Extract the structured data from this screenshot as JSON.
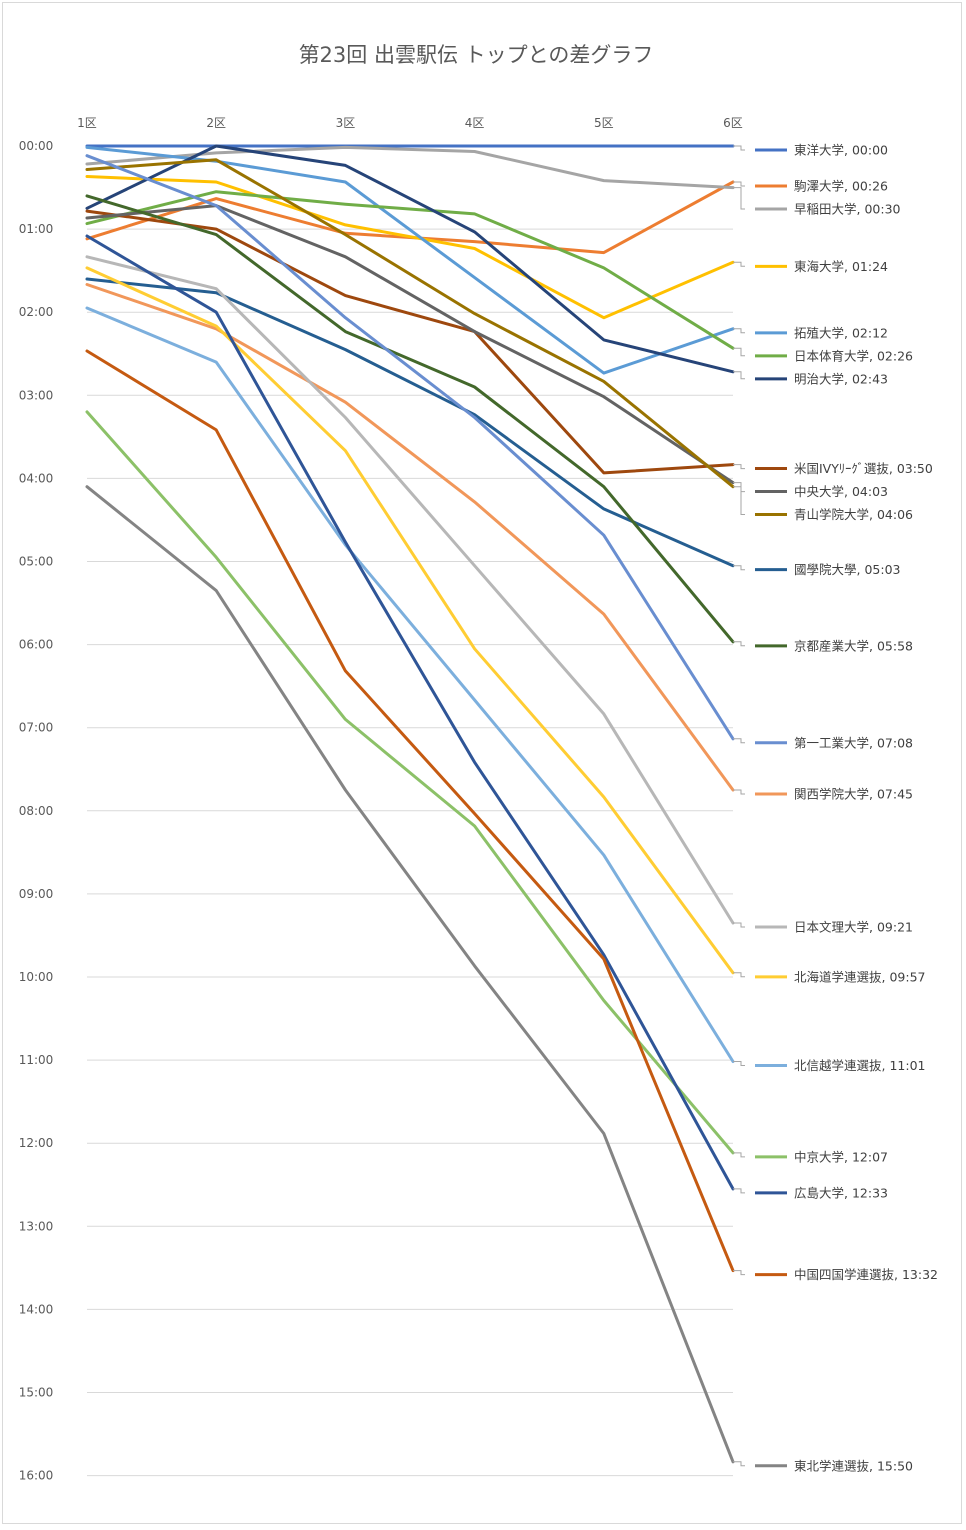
{
  "chart_data": {
    "type": "line",
    "title": "第23回 出雲駅伝 トップとの差グラフ",
    "categories": [
      "1区",
      "2区",
      "3区",
      "4区",
      "5区",
      "6区"
    ],
    "y_ticks": [
      "00:00",
      "01:00",
      "02:00",
      "03:00",
      "04:00",
      "05:00",
      "06:00",
      "07:00",
      "08:00",
      "09:00",
      "10:00",
      "11:00",
      "12:00",
      "13:00",
      "14:00",
      "15:00",
      "16:00"
    ],
    "ylim": [
      0,
      960
    ],
    "y_unit": "seconds behind leader (axis printed as mm:ss, inverted)",
    "grid": true,
    "legend": "right",
    "series": [
      {
        "name": "東洋大学",
        "label": "東洋大学, 00:00",
        "color": "#4472c4",
        "values": [
          0,
          0,
          0,
          0,
          0,
          0
        ]
      },
      {
        "name": "駒澤大学",
        "label": "駒澤大学, 00:26",
        "color": "#ed7d31",
        "values": [
          67,
          38,
          63,
          69,
          77,
          26
        ]
      },
      {
        "name": "早稲田大学",
        "label": "早稲田大学, 00:30",
        "color": "#a5a5a5",
        "values": [
          13,
          5,
          1,
          4,
          25,
          30
        ]
      },
      {
        "name": "東海大学",
        "label": "東海大学, 01:24",
        "color": "#ffc000",
        "values": [
          22,
          26,
          57,
          74,
          124,
          84
        ]
      },
      {
        "name": "拓殖大学",
        "label": "拓殖大学, 02:12",
        "color": "#5b9bd5",
        "values": [
          1,
          11,
          26,
          95,
          164,
          132
        ]
      },
      {
        "name": "日本体育大学",
        "label": "日本体育大学, 02:26",
        "color": "#70ad47",
        "values": [
          56,
          33,
          42,
          49,
          88,
          146
        ]
      },
      {
        "name": "明治大学",
        "label": "明治大学, 02:43",
        "color": "#264478",
        "values": [
          45,
          0,
          14,
          62,
          140,
          163
        ]
      },
      {
        "name": "米国IVYﾘｰｸﾞ選抜",
        "label": "米国IVYﾘｰｸﾞ選抜, 03:50",
        "color": "#9e480e",
        "values": [
          47,
          60,
          108,
          134,
          236,
          230
        ]
      },
      {
        "name": "中央大学",
        "label": "中央大学, 04:03",
        "color": "#636363",
        "values": [
          52,
          43,
          80,
          134,
          181,
          243
        ]
      },
      {
        "name": "青山学院大学",
        "label": "青山学院大学, 04:06",
        "color": "#997300",
        "values": [
          17,
          10,
          64,
          121,
          170,
          246
        ]
      },
      {
        "name": "國學院大學",
        "label": "國學院大學, 05:03",
        "color": "#255e91",
        "values": [
          96,
          106,
          147,
          194,
          262,
          303
        ]
      },
      {
        "name": "京都産業大学",
        "label": "京都産業大学, 05:58",
        "color": "#43682b",
        "values": [
          36,
          64,
          134,
          174,
          246,
          358
        ]
      },
      {
        "name": "第一工業大学",
        "label": "第一工業大学, 07:08",
        "color": "#698ed0",
        "values": [
          7,
          43,
          124,
          196,
          281,
          428
        ]
      },
      {
        "name": "関西学院大学",
        "label": "関西学院大学, 07:45",
        "color": "#f1975a",
        "values": [
          100,
          132,
          185,
          257,
          338,
          465
        ]
      },
      {
        "name": "日本文理大学",
        "label": "日本文理大学, 09:21",
        "color": "#b7b7b7",
        "values": [
          80,
          103,
          196,
          303,
          410,
          561
        ]
      },
      {
        "name": "北海道学連選抜",
        "label": "北海道学連選抜, 09:57",
        "color": "#ffcd33",
        "values": [
          88,
          130,
          220,
          363,
          470,
          597
        ]
      },
      {
        "name": "北信越学連選抜",
        "label": "北信越学連選抜, 11:01",
        "color": "#7cafdd",
        "values": [
          117,
          156,
          288,
          400,
          512,
          661
        ]
      },
      {
        "name": "中京大学",
        "label": "中京大学, 12:07",
        "color": "#8cc168",
        "values": [
          192,
          297,
          414,
          491,
          617,
          727
        ]
      },
      {
        "name": "広島大学",
        "label": "広島大学, 12:33",
        "color": "#2f5597",
        "values": [
          65,
          120,
          286,
          445,
          584,
          753
        ]
      },
      {
        "name": "中国四国学連選抜",
        "label": "中国四国学連選抜, 13:32",
        "color": "#c55a11",
        "values": [
          148,
          205,
          379,
          482,
          587,
          812
        ]
      },
      {
        "name": "東北学連選抜",
        "label": "東北学連選抜, 15:50",
        "color": "#848484",
        "values": [
          246,
          321,
          465,
          592,
          713,
          950
        ]
      }
    ]
  }
}
